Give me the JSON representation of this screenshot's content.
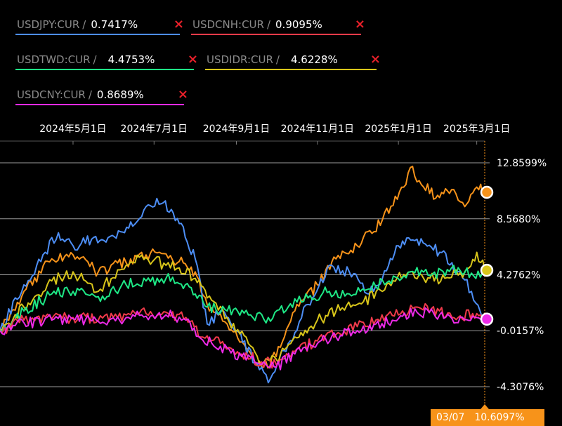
{
  "legend": [
    {
      "symbol": "USDJPY:CUR",
      "value": "0.7417%",
      "color": "#4d8ef5"
    },
    {
      "symbol": "USDCNH:CUR",
      "value": "0.9095%",
      "color": "#f03a4a"
    },
    {
      "symbol": "USDTWD:CUR",
      "value": "4.4753%",
      "color": "#1ee886"
    },
    {
      "symbol": "USDIDR:CUR",
      "value": "4.6228%",
      "color": "#d8c51a"
    },
    {
      "symbol": "USDCNY:CUR",
      "value": "0.8689%",
      "color": "#ee2ae8"
    }
  ],
  "remove_glyph": "×",
  "separator": "/",
  "crosshair": {
    "date": "03/07",
    "value": "10.6097%"
  },
  "chart_data": {
    "type": "line",
    "x_labels": [
      "2024年5月1日",
      "2024年7月1日",
      "2024年9月1日",
      "2024年11月1日",
      "2025年1月1日",
      "2025年3月1日"
    ],
    "y_ticks": [
      "12.8599%",
      "8.5680%",
      "4.2762%",
      "-0.0157%",
      "-4.3076%"
    ],
    "y_tick_values": [
      12.8599,
      8.568,
      4.2762,
      -0.0157,
      -4.3076
    ],
    "x_range": [
      "2024-03-07",
      "2025-03-07"
    ],
    "grid": true,
    "series": [
      {
        "color": "#f7931a",
        "points": [
          [
            "2024-03-07",
            0
          ],
          [
            "2024-03-25",
            3.0
          ],
          [
            "2024-04-15",
            5.5
          ],
          [
            "2024-05-01",
            5.8
          ],
          [
            "2024-05-20",
            4.5
          ],
          [
            "2024-06-10",
            5.2
          ],
          [
            "2024-06-25",
            5.8
          ],
          [
            "2024-07-05",
            6.0
          ],
          [
            "2024-07-20",
            5.3
          ],
          [
            "2024-08-01",
            4.5
          ],
          [
            "2024-08-10",
            2.0
          ],
          [
            "2024-08-25",
            0.5
          ],
          [
            "2024-09-10",
            -1.5
          ],
          [
            "2024-09-20",
            -2.8
          ],
          [
            "2024-10-01",
            -2.0
          ],
          [
            "2024-10-15",
            1.5
          ],
          [
            "2024-11-01",
            3.5
          ],
          [
            "2024-11-15",
            5.5
          ],
          [
            "2024-12-01",
            6.5
          ],
          [
            "2024-12-20",
            8.5
          ],
          [
            "2025-01-05",
            11.0
          ],
          [
            "2025-01-10",
            12.5
          ],
          [
            "2025-01-20",
            11.0
          ],
          [
            "2025-02-01",
            10.2
          ],
          [
            "2025-02-10",
            10.8
          ],
          [
            "2025-02-20",
            9.5
          ],
          [
            "2025-03-01",
            11.0
          ],
          [
            "2025-03-07",
            10.6
          ]
        ]
      },
      {
        "color": "#4d8ef5",
        "points": [
          [
            "2024-03-07",
            0
          ],
          [
            "2024-03-25",
            3.5
          ],
          [
            "2024-04-10",
            6.0
          ],
          [
            "2024-04-20",
            7.5
          ],
          [
            "2024-05-01",
            6.5
          ],
          [
            "2024-05-15",
            7.0
          ],
          [
            "2024-06-01",
            7.2
          ],
          [
            "2024-06-15",
            8.0
          ],
          [
            "2024-06-25",
            9.5
          ],
          [
            "2024-07-08",
            9.8
          ],
          [
            "2024-07-20",
            8.2
          ],
          [
            "2024-08-01",
            5.5
          ],
          [
            "2024-08-10",
            0.5
          ],
          [
            "2024-08-20",
            1.5
          ],
          [
            "2024-09-01",
            0.0
          ],
          [
            "2024-09-15",
            -2.5
          ],
          [
            "2024-09-25",
            -4.0
          ],
          [
            "2024-10-10",
            -1.0
          ],
          [
            "2024-10-25",
            2.0
          ],
          [
            "2024-11-10",
            5.0
          ],
          [
            "2024-11-25",
            4.5
          ],
          [
            "2024-12-10",
            2.8
          ],
          [
            "2024-12-20",
            4.0
          ],
          [
            "2025-01-01",
            6.5
          ],
          [
            "2025-01-15",
            7.0
          ],
          [
            "2025-02-01",
            6.0
          ],
          [
            "2025-02-15",
            4.5
          ],
          [
            "2025-02-25",
            3.0
          ],
          [
            "2025-03-07",
            0.74
          ]
        ]
      },
      {
        "color": "#d8c51a",
        "points": [
          [
            "2024-03-07",
            0
          ],
          [
            "2024-03-25",
            1.8
          ],
          [
            "2024-04-15",
            3.8
          ],
          [
            "2024-05-01",
            4.5
          ],
          [
            "2024-05-20",
            3.0
          ],
          [
            "2024-06-10",
            5.0
          ],
          [
            "2024-06-25",
            5.6
          ],
          [
            "2024-07-10",
            5.0
          ],
          [
            "2024-07-20",
            4.8
          ],
          [
            "2024-08-01",
            4.0
          ],
          [
            "2024-08-10",
            2.5
          ],
          [
            "2024-08-25",
            1.0
          ],
          [
            "2024-09-10",
            -1.0
          ],
          [
            "2024-09-20",
            -2.6
          ],
          [
            "2024-10-01",
            -2.2
          ],
          [
            "2024-10-15",
            -0.5
          ],
          [
            "2024-11-01",
            0.8
          ],
          [
            "2024-11-15",
            1.5
          ],
          [
            "2024-12-01",
            2.0
          ],
          [
            "2024-12-20",
            3.0
          ],
          [
            "2025-01-05",
            4.3
          ],
          [
            "2025-01-20",
            4.0
          ],
          [
            "2025-02-05",
            4.0
          ],
          [
            "2025-02-20",
            4.5
          ],
          [
            "2025-03-01",
            6.0
          ],
          [
            "2025-03-07",
            4.62
          ]
        ]
      },
      {
        "color": "#1ee886",
        "points": [
          [
            "2024-03-07",
            0
          ],
          [
            "2024-03-25",
            1.5
          ],
          [
            "2024-04-15",
            2.8
          ],
          [
            "2024-05-01",
            3.0
          ],
          [
            "2024-05-20",
            2.6
          ],
          [
            "2024-06-10",
            3.5
          ],
          [
            "2024-06-25",
            3.8
          ],
          [
            "2024-07-10",
            4.0
          ],
          [
            "2024-07-20",
            3.6
          ],
          [
            "2024-08-01",
            2.8
          ],
          [
            "2024-08-10",
            1.8
          ],
          [
            "2024-08-25",
            1.5
          ],
          [
            "2024-09-10",
            1.2
          ],
          [
            "2024-09-25",
            1.0
          ],
          [
            "2024-10-10",
            1.8
          ],
          [
            "2024-10-25",
            2.5
          ],
          [
            "2024-11-10",
            3.0
          ],
          [
            "2024-11-25",
            2.8
          ],
          [
            "2024-12-10",
            3.2
          ],
          [
            "2024-12-25",
            3.8
          ],
          [
            "2025-01-10",
            4.5
          ],
          [
            "2025-01-25",
            4.2
          ],
          [
            "2025-02-10",
            4.8
          ],
          [
            "2025-02-25",
            4.4
          ],
          [
            "2025-03-07",
            4.48
          ]
        ]
      },
      {
        "color": "#f03a4a",
        "points": [
          [
            "2024-03-07",
            0
          ],
          [
            "2024-03-25",
            0.8
          ],
          [
            "2024-04-15",
            0.9
          ],
          [
            "2024-05-01",
            1.0
          ],
          [
            "2024-05-20",
            0.8
          ],
          [
            "2024-06-10",
            1.2
          ],
          [
            "2024-06-25",
            1.3
          ],
          [
            "2024-07-10",
            1.4
          ],
          [
            "2024-07-25",
            1.0
          ],
          [
            "2024-08-05",
            -0.5
          ],
          [
            "2024-08-20",
            -1.0
          ],
          [
            "2024-09-05",
            -1.8
          ],
          [
            "2024-09-20",
            -2.4
          ],
          [
            "2024-10-01",
            -2.6
          ],
          [
            "2024-10-15",
            -1.6
          ],
          [
            "2024-11-01",
            -0.8
          ],
          [
            "2024-11-15",
            -0.3
          ],
          [
            "2024-12-01",
            0.3
          ],
          [
            "2024-12-15",
            0.8
          ],
          [
            "2025-01-01",
            1.2
          ],
          [
            "2025-01-15",
            1.8
          ],
          [
            "2025-02-01",
            1.5
          ],
          [
            "2025-02-15",
            1.0
          ],
          [
            "2025-03-01",
            1.3
          ],
          [
            "2025-03-07",
            0.91
          ]
        ]
      },
      {
        "color": "#ee2ae8",
        "points": [
          [
            "2024-03-07",
            0
          ],
          [
            "2024-03-25",
            0.6
          ],
          [
            "2024-04-15",
            0.8
          ],
          [
            "2024-05-01",
            0.9
          ],
          [
            "2024-05-20",
            0.7
          ],
          [
            "2024-06-10",
            1.0
          ],
          [
            "2024-06-25",
            1.1
          ],
          [
            "2024-07-10",
            1.2
          ],
          [
            "2024-07-25",
            0.8
          ],
          [
            "2024-08-05",
            -0.6
          ],
          [
            "2024-08-20",
            -1.2
          ],
          [
            "2024-09-05",
            -2.0
          ],
          [
            "2024-09-20",
            -2.6
          ],
          [
            "2024-10-01",
            -2.8
          ],
          [
            "2024-10-15",
            -1.8
          ],
          [
            "2024-11-01",
            -1.0
          ],
          [
            "2024-11-15",
            -0.5
          ],
          [
            "2024-12-01",
            0.0
          ],
          [
            "2024-12-15",
            0.5
          ],
          [
            "2025-01-01",
            0.9
          ],
          [
            "2025-01-15",
            1.4
          ],
          [
            "2025-02-01",
            1.2
          ],
          [
            "2025-02-15",
            0.6
          ],
          [
            "2025-03-01",
            1.0
          ],
          [
            "2025-03-07",
            0.87
          ]
        ]
      }
    ]
  }
}
